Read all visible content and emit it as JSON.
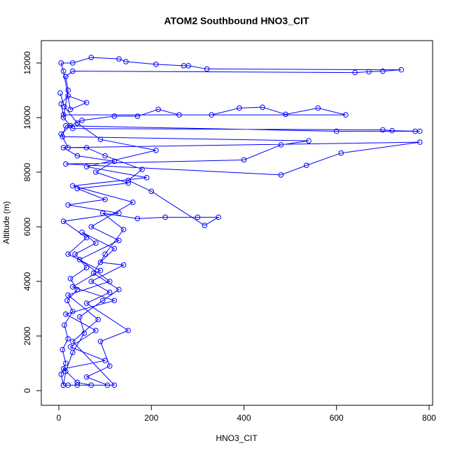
{
  "chart_data": {
    "type": "line",
    "title": "ATOM2 Southbound HNO3_CIT",
    "x_label": "HNO3_CIT",
    "y_label": "Altitude (m)",
    "xlim": [
      -37.8,
      807.6
    ],
    "ylim": [
      -538,
      12820
    ],
    "xticks": [
      0,
      200,
      400,
      600,
      800
    ],
    "yticks": [
      0,
      2000,
      4000,
      6000,
      8000,
      10000,
      12000
    ],
    "series": [
      {
        "color": "#0000ff",
        "x": [
          10,
          5,
          15,
          8,
          20,
          12,
          30,
          18,
          40,
          25,
          60,
          35,
          80,
          50,
          120,
          90,
          140,
          70,
          110,
          60,
          150,
          90,
          110,
          60,
          105,
          40,
          20,
          10,
          15,
          30,
          55,
          45,
          95,
          130,
          75,
          100,
          140,
          95,
          170,
          230,
          300,
          345,
          315,
          200,
          150,
          180,
          100,
          60,
          20,
          5,
          25,
          50,
          120,
          170,
          215,
          260,
          330,
          390,
          440,
          490,
          560,
          620,
          10,
          5,
          20,
          60,
          25,
          10,
          5,
          30,
          70,
          130,
          145,
          210,
          270,
          280,
          320,
          740,
          700,
          670,
          640,
          30,
          15,
          20,
          10,
          30,
          700,
          720,
          780,
          770,
          600,
          15,
          8,
          540,
          480,
          400,
          15,
          480,
          535,
          610,
          780,
          10,
          40,
          120,
          80,
          150,
          40,
          100,
          20,
          130,
          10,
          60,
          20,
          90,
          30,
          120,
          15,
          80,
          25,
          100,
          10,
          40,
          70,
          120,
          30,
          85,
          20,
          110,
          45,
          130,
          70,
          160,
          30,
          190,
          60,
          210,
          90,
          40,
          12,
          3
        ],
        "y": [
          200,
          600,
          1000,
          1500,
          1900,
          2400,
          2900,
          3300,
          3700,
          4100,
          4500,
          5000,
          5400,
          5800,
          5200,
          4700,
          4600,
          4000,
          3600,
          3200,
          2200,
          1800,
          900,
          500,
          200,
          200,
          200,
          200,
          700,
          1400,
          2100,
          2700,
          3300,
          3700,
          4300,
          5000,
          5900,
          6500,
          6300,
          6350,
          6350,
          6350,
          6050,
          7300,
          7700,
          8100,
          8600,
          8900,
          8900,
          9400,
          9700,
          9900,
          10050,
          10050,
          10300,
          10100,
          10100,
          10350,
          10380,
          10120,
          10350,
          10100,
          10100,
          10500,
          10800,
          10550,
          10300,
          11700,
          12000,
          12000,
          12200,
          12150,
          12050,
          11950,
          11900,
          11900,
          11780,
          11750,
          11700,
          11680,
          11650,
          11700,
          11500,
          11000,
          10000,
          9600,
          9550,
          9520,
          9500,
          9500,
          9500,
          9700,
          9300,
          9150,
          9000,
          8450,
          8300,
          7900,
          8250,
          8700,
          9100,
          8900,
          8600,
          8400,
          8000,
          7600,
          7400,
          7000,
          6800,
          6500,
          6200,
          5600,
          5000,
          4400,
          3800,
          3300,
          2800,
          2200,
          1600,
          1100,
          800,
          300,
          200,
          200,
          1800,
          2600,
          3500,
          4000,
          4800,
          5500,
          6000,
          6900,
          7500,
          7800,
          8200,
          8800,
          9200,
          9800,
          10400,
          10900
        ]
      }
    ]
  }
}
